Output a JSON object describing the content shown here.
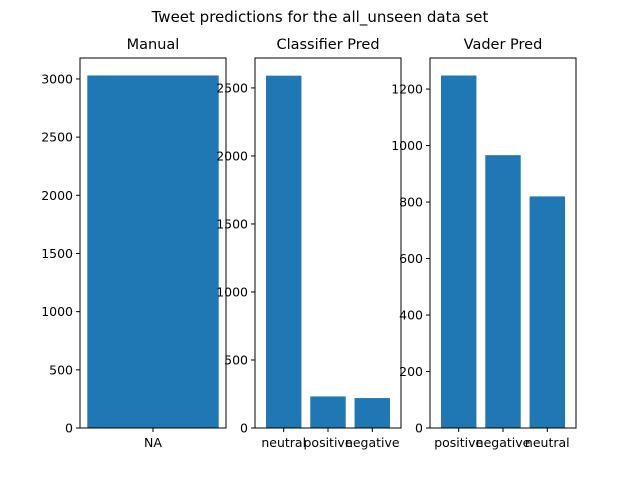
{
  "figure": {
    "suptitle": "Tweet predictions for the all_unseen data set"
  },
  "chart_data": [
    {
      "type": "bar",
      "title": "Manual",
      "categories": [
        "NA"
      ],
      "values": [
        3030
      ],
      "ylim": [
        0,
        3180
      ],
      "yticks": [
        0,
        500,
        1000,
        1500,
        2000,
        2500,
        3000
      ],
      "color": "#1f77b4",
      "grid": false
    },
    {
      "type": "bar",
      "title": "Classifier Pred",
      "categories": [
        "neutral",
        "positive",
        "negative"
      ],
      "values": [
        2590,
        232,
        220
      ],
      "ylim": [
        0,
        2720
      ],
      "yticks": [
        0,
        500,
        1000,
        1500,
        2000,
        2500
      ],
      "color": "#1f77b4",
      "grid": false
    },
    {
      "type": "bar",
      "title": "Vader Pred",
      "categories": [
        "positive",
        "negative",
        "neutral"
      ],
      "values": [
        1248,
        966,
        820
      ],
      "ylim": [
        0,
        1310
      ],
      "yticks": [
        0,
        200,
        400,
        600,
        800,
        1000,
        1200
      ],
      "color": "#1f77b4",
      "grid": false
    }
  ]
}
